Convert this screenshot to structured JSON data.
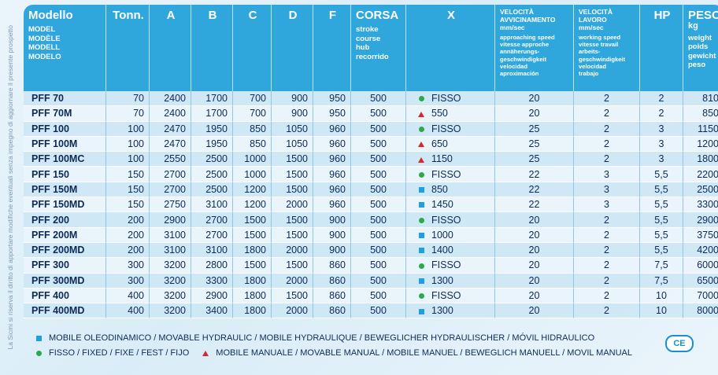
{
  "side_note": "La Sicmi si riserva il diritto di apportare modifiche eventuali senza impegno di aggiornare il presente prospetto",
  "headers": {
    "modello": {
      "main": "Modello",
      "subs": [
        "MODEL",
        "MODÈLE",
        "MODELL",
        "MODELO"
      ]
    },
    "tonn": {
      "main": "Tonn."
    },
    "a": {
      "main": "A"
    },
    "b": {
      "main": "B"
    },
    "c": {
      "main": "C"
    },
    "d": {
      "main": "D"
    },
    "f": {
      "main": "F"
    },
    "corsa": {
      "main": "CORSA",
      "subs": [
        "stroke",
        "course",
        "hub",
        "recorrido"
      ]
    },
    "x": {
      "main": "X"
    },
    "vel_avv": {
      "main": [
        "VELOCITÀ",
        "AVVICINAMENTO",
        "mm/sec"
      ],
      "subs": [
        "approaching speed",
        "vitesse approche",
        "annäherungs-",
        "geschwindigkeit",
        "velocidad",
        "aproximación"
      ]
    },
    "vel_lav": {
      "main": [
        "VELOCITÀ",
        "LAVORO",
        "mm/sec"
      ],
      "subs": [
        "working speed",
        "vitesse travail",
        "arbeits-",
        "geschwindigkeit",
        "velocidad",
        "trabajo"
      ]
    },
    "hp": {
      "main": "HP"
    },
    "peso": {
      "main": [
        "PESO",
        "kg"
      ],
      "subs": [
        "weight",
        "poids",
        "gewicht",
        "peso"
      ]
    }
  },
  "rows": [
    {
      "model": "PFF 70",
      "tonn": "70",
      "a": "2400",
      "b": "1700",
      "c": "700",
      "d": "900",
      "f": "950",
      "corsa": "500",
      "x_icon": "green-circle-icon",
      "x": "FISSO",
      "vel_avv": "20",
      "vel_lav": "2",
      "hp": "2",
      "peso": "810"
    },
    {
      "model": "PFF 70M",
      "tonn": "70",
      "a": "2400",
      "b": "1700",
      "c": "700",
      "d": "900",
      "f": "950",
      "corsa": "500",
      "x_icon": "red-triangle-icon",
      "x": "550",
      "vel_avv": "20",
      "vel_lav": "2",
      "hp": "2",
      "peso": "850"
    },
    {
      "model": "PFF 100",
      "tonn": "100",
      "a": "2470",
      "b": "1950",
      "c": "850",
      "d": "1050",
      "f": "960",
      "corsa": "500",
      "x_icon": "green-circle-icon",
      "x": "FISSO",
      "vel_avv": "25",
      "vel_lav": "2",
      "hp": "3",
      "peso": "1150"
    },
    {
      "model": "PFF 100M",
      "tonn": "100",
      "a": "2470",
      "b": "1950",
      "c": "850",
      "d": "1050",
      "f": "960",
      "corsa": "500",
      "x_icon": "red-triangle-icon",
      "x": "650",
      "vel_avv": "25",
      "vel_lav": "2",
      "hp": "3",
      "peso": "1200"
    },
    {
      "model": "PFF 100MC",
      "tonn": "100",
      "a": "2550",
      "b": "2500",
      "c": "1000",
      "d": "1500",
      "f": "960",
      "corsa": "500",
      "x_icon": "red-triangle-icon",
      "x": "1150",
      "vel_avv": "25",
      "vel_lav": "2",
      "hp": "3",
      "peso": "1800"
    },
    {
      "model": "PFF 150",
      "tonn": "150",
      "a": "2700",
      "b": "2500",
      "c": "1000",
      "d": "1500",
      "f": "960",
      "corsa": "500",
      "x_icon": "green-circle-icon",
      "x": "FISSO",
      "vel_avv": "22",
      "vel_lav": "3",
      "hp": "5,5",
      "peso": "2200"
    },
    {
      "model": "PFF 150M",
      "tonn": "150",
      "a": "2700",
      "b": "2500",
      "c": "1200",
      "d": "1500",
      "f": "960",
      "corsa": "500",
      "x_icon": "blue-square-icon",
      "x": "850",
      "vel_avv": "22",
      "vel_lav": "3",
      "hp": "5,5",
      "peso": "2500"
    },
    {
      "model": "PFF 150MD",
      "tonn": "150",
      "a": "2750",
      "b": "3100",
      "c": "1200",
      "d": "2000",
      "f": "960",
      "corsa": "500",
      "x_icon": "blue-square-icon",
      "x": "1450",
      "vel_avv": "22",
      "vel_lav": "3",
      "hp": "5,5",
      "peso": "3300"
    },
    {
      "model": "PFF 200",
      "tonn": "200",
      "a": "2900",
      "b": "2700",
      "c": "1500",
      "d": "1500",
      "f": "900",
      "corsa": "500",
      "x_icon": "green-circle-icon",
      "x": "FISSO",
      "vel_avv": "20",
      "vel_lav": "2",
      "hp": "5,5",
      "peso": "2900"
    },
    {
      "model": "PFF 200M",
      "tonn": "200",
      "a": "3100",
      "b": "2700",
      "c": "1500",
      "d": "1500",
      "f": "900",
      "corsa": "500",
      "x_icon": "blue-square-icon",
      "x": "1000",
      "vel_avv": "20",
      "vel_lav": "2",
      "hp": "5,5",
      "peso": "3750"
    },
    {
      "model": "PFF 200MD",
      "tonn": "200",
      "a": "3100",
      "b": "3100",
      "c": "1800",
      "d": "2000",
      "f": "900",
      "corsa": "500",
      "x_icon": "blue-square-icon",
      "x": "1400",
      "vel_avv": "20",
      "vel_lav": "2",
      "hp": "5,5",
      "peso": "4200"
    },
    {
      "model": "PFF 300",
      "tonn": "300",
      "a": "3200",
      "b": "2800",
      "c": "1500",
      "d": "1500",
      "f": "860",
      "corsa": "500",
      "x_icon": "green-circle-icon",
      "x": "FISSO",
      "vel_avv": "20",
      "vel_lav": "2",
      "hp": "7,5",
      "peso": "6000"
    },
    {
      "model": "PFF 300MD",
      "tonn": "300",
      "a": "3200",
      "b": "3300",
      "c": "1800",
      "d": "2000",
      "f": "860",
      "corsa": "500",
      "x_icon": "blue-square-icon",
      "x": "1300",
      "vel_avv": "20",
      "vel_lav": "2",
      "hp": "7,5",
      "peso": "6500"
    },
    {
      "model": "PFF 400",
      "tonn": "400",
      "a": "3200",
      "b": "2900",
      "c": "1800",
      "d": "1500",
      "f": "860",
      "corsa": "500",
      "x_icon": "green-circle-icon",
      "x": "FISSO",
      "vel_avv": "20",
      "vel_lav": "2",
      "hp": "10",
      "peso": "7000"
    },
    {
      "model": "PFF 400MD",
      "tonn": "400",
      "a": "3200",
      "b": "3400",
      "c": "1800",
      "d": "2000",
      "f": "860",
      "corsa": "500",
      "x_icon": "blue-square-icon",
      "x": "1300",
      "vel_avv": "20",
      "vel_lav": "2",
      "hp": "10",
      "peso": "8000"
    }
  ],
  "legend": {
    "movable_hydraulic": "MOBILE OLEODINAMICO / MOVABLE HYDRAULIC / MOBILE HYDRAULIQUE / BEWEGLICHER HYDRAULISCHER / MÓVIL HIDRAULICO",
    "fixed": "FISSO / FIXED / FIXE / FEST / FIJO",
    "movable_manual": "MOBILE MANUALE / MOVABLE MANUAL / MOBILE MANUEL / BEWEGLICH MANUELL / MOVIL MANUAL"
  },
  "ce_mark": "CE",
  "colors": {
    "header_bg": "#2fa7dc",
    "green": "#2ea84a",
    "red": "#d7262f",
    "blue": "#1f9fe0"
  }
}
